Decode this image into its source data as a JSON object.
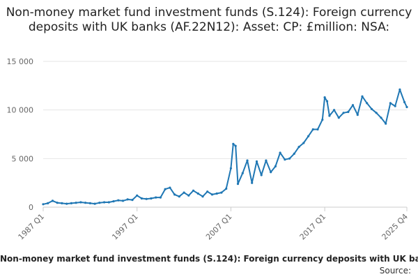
{
  "chart_data": {
    "type": "line",
    "title": "Non-money market fund investment funds (S.124): Foreign currency deposits with UK banks (AF.22N12): Asset: CP: £million: NSA:",
    "xlabel": "",
    "ylabel": "",
    "ylim": [
      0,
      15000
    ],
    "yticks": [
      0,
      5000,
      10000,
      15000
    ],
    "ytick_labels": [
      "0",
      "5 000",
      "10 000",
      "15 000"
    ],
    "xticks": [
      "1987 Q1",
      "1997 Q1",
      "2007 Q1",
      "2017 Q1",
      "2025 Q4"
    ],
    "grid": true,
    "legend": "bottom",
    "series": [
      {
        "name": "Non-money market fund investment funds (S.124): Foreign currency deposits with UK banks (AF.22N12): Asset: CP: £million: NSA:",
        "color": "#1f77b4",
        "x": [
          "1987 Q1",
          "1987 Q3",
          "1988 Q1",
          "1988 Q3",
          "1989 Q1",
          "1989 Q3",
          "1990 Q1",
          "1990 Q3",
          "1991 Q1",
          "1991 Q3",
          "1992 Q1",
          "1992 Q3",
          "1993 Q1",
          "1993 Q3",
          "1994 Q1",
          "1994 Q3",
          "1995 Q1",
          "1995 Q3",
          "1996 Q1",
          "1996 Q3",
          "1997 Q1",
          "1997 Q3",
          "1998 Q1",
          "1998 Q3",
          "1999 Q1",
          "1999 Q3",
          "2000 Q1",
          "2000 Q3",
          "2001 Q1",
          "2001 Q3",
          "2002 Q1",
          "2002 Q3",
          "2003 Q1",
          "2003 Q3",
          "2004 Q1",
          "2004 Q3",
          "2005 Q1",
          "2005 Q3",
          "2006 Q1",
          "2006 Q3",
          "2007 Q1",
          "2007 Q2",
          "2007 Q3",
          "2007 Q4",
          "2008 Q2",
          "2008 Q4",
          "2009 Q2",
          "2009 Q4",
          "2010 Q2",
          "2010 Q4",
          "2011 Q2",
          "2011 Q4",
          "2012 Q2",
          "2012 Q4",
          "2013 Q2",
          "2013 Q4",
          "2014 Q2",
          "2014 Q4",
          "2015 Q2",
          "2015 Q4",
          "2016 Q2",
          "2016 Q4",
          "2017 Q1",
          "2017 Q2",
          "2017 Q3",
          "2018 Q1",
          "2018 Q3",
          "2019 Q1",
          "2019 Q3",
          "2020 Q1",
          "2020 Q3",
          "2021 Q1",
          "2021 Q3",
          "2022 Q1",
          "2022 Q3",
          "2023 Q1",
          "2023 Q3",
          "2024 Q1",
          "2024 Q3",
          "2025 Q1",
          "2025 Q3",
          "2025 Q4"
        ],
        "values": [
          300,
          400,
          650,
          450,
          400,
          350,
          400,
          450,
          500,
          450,
          400,
          350,
          450,
          500,
          500,
          600,
          700,
          650,
          800,
          750,
          1200,
          900,
          850,
          900,
          1000,
          1000,
          1850,
          2000,
          1300,
          1100,
          1500,
          1200,
          1700,
          1400,
          1100,
          1600,
          1300,
          1400,
          1500,
          1900,
          4000,
          6500,
          6300,
          2400,
          3500,
          4800,
          2500,
          4700,
          3300,
          4800,
          3600,
          4200,
          5600,
          4900,
          5000,
          5500,
          6200,
          6600,
          7300,
          8000,
          8000,
          9000,
          11300,
          10900,
          9400,
          10000,
          9200,
          9700,
          9800,
          10500,
          9500,
          11400,
          10700,
          10100,
          9700,
          9200,
          8600,
          10700,
          10400,
          12100,
          10800,
          10300
        ]
      }
    ],
    "source_label": "Source:"
  }
}
